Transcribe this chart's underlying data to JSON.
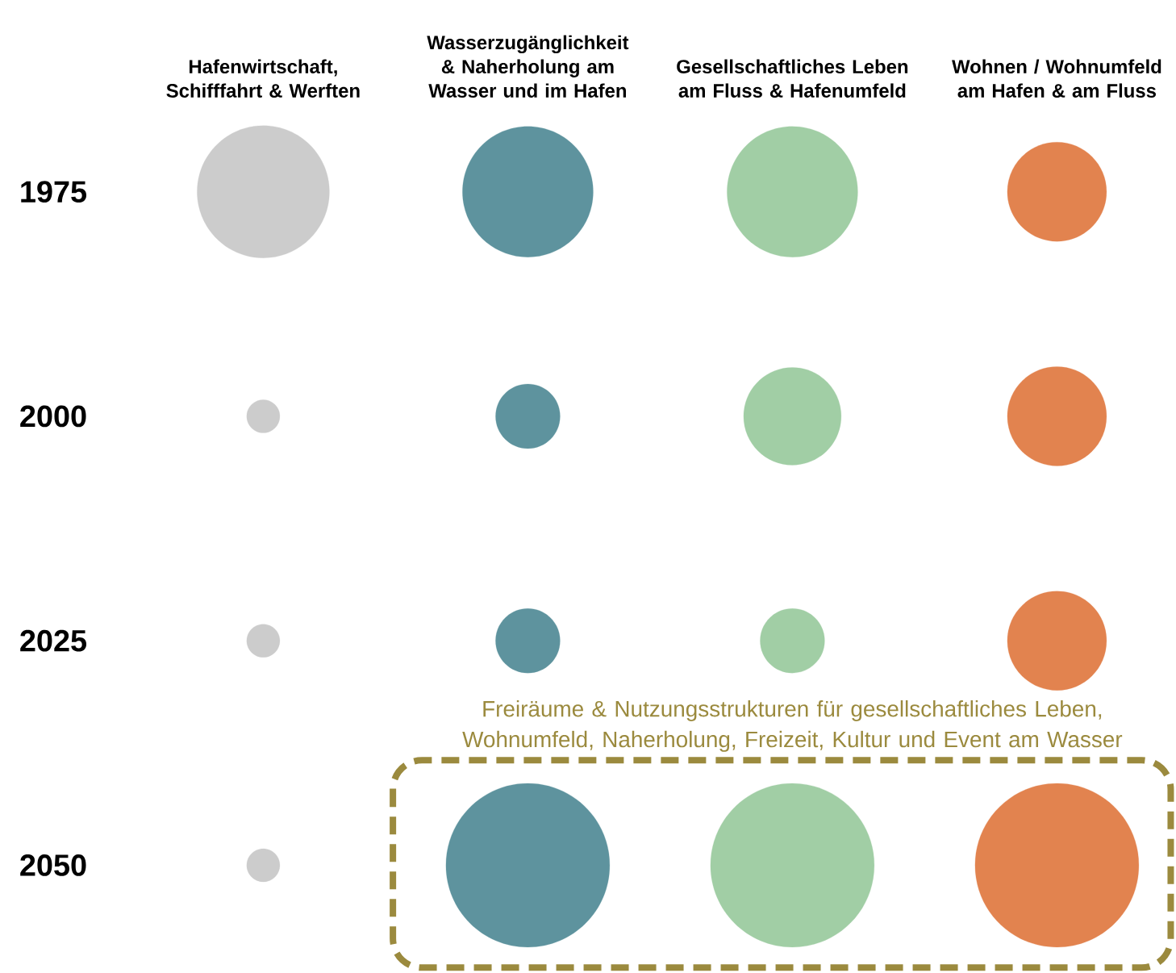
{
  "chart_data": {
    "type": "bubble",
    "categories": [
      "Hafenwirtschaft, Schifffahrt & Werften",
      "Wasserzugänglichkeit & Naherholung am Wasser und im Hafen",
      "Gesellschaftliches Leben am Fluss & Hafenumfeld",
      "Wohnen / Wohnumfeld am Hafen & am Fluss"
    ],
    "series": [
      {
        "values": [
          1975,
          1975,
          1975,
          1975
        ],
        "sizes": [
          0.653,
          0.637,
          0.637,
          0.367
        ],
        "colors": [
          "#cccccc",
          "#5e939e",
          "#a1cea5",
          "#e2834f"
        ]
      },
      {
        "values": [
          2000,
          2000,
          2000,
          2000
        ],
        "sizes": [
          0.041,
          0.155,
          0.355,
          0.367
        ],
        "colors": [
          "#cccccc",
          "#5e939e",
          "#a1cea5",
          "#e2834f"
        ]
      },
      {
        "values": [
          2025,
          2025,
          2025,
          2025
        ],
        "sizes": [
          0.041,
          0.155,
          0.155,
          0.367
        ],
        "colors": [
          "#cccccc",
          "#5e939e",
          "#a1cea5",
          "#e2834f"
        ]
      },
      {
        "values": [
          2050,
          2050,
          2050,
          2050
        ],
        "sizes": [
          0.041,
          1,
          1,
          1
        ],
        "colors": [
          "#cccccc",
          "#5e939e",
          "#a1cea5",
          "#e2834f"
        ]
      }
    ],
    "ylim": [
      2050,
      1975
    ],
    "yticks": [
      1975,
      2000,
      2025,
      2050
    ],
    "annotations": [
      "Freiräume & Nutzungsstrukturen für gesellschaftliches Leben, Wohnumfeld, Naherholung, Freizeit, Kultur und Event am Wasser"
    ]
  }
}
